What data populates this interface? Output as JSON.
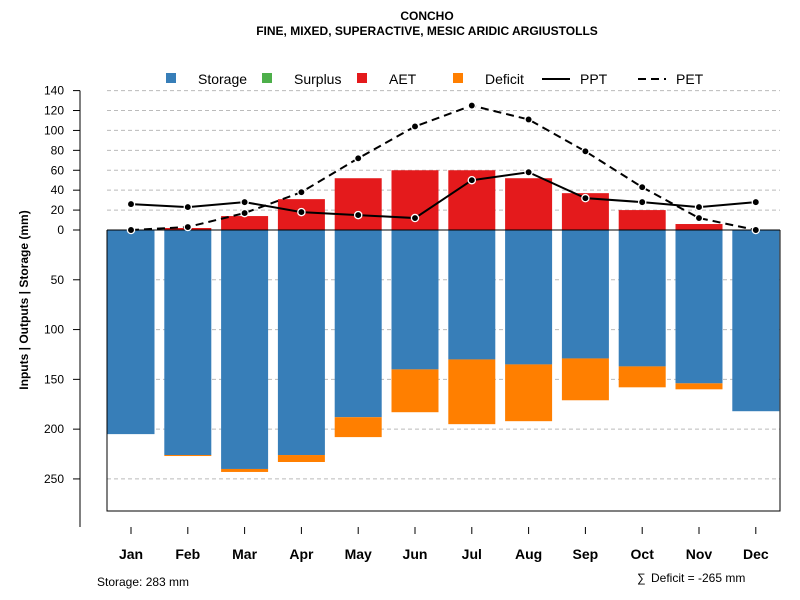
{
  "chart_data": {
    "type": "bar",
    "title": "CONCHO",
    "subtitle": "FINE, MIXED, SUPERACTIVE, MESIC ARIDIC ARGIUSTOLLS",
    "ylabel": "Inputs | Outputs | Storage    (mm)",
    "categories": [
      "Jan",
      "Feb",
      "Mar",
      "Apr",
      "May",
      "Jun",
      "Jul",
      "Aug",
      "Sep",
      "Oct",
      "Nov",
      "Dec"
    ],
    "upper_ticks": [
      "0",
      "20",
      "40",
      "60",
      "80",
      "100",
      "120",
      "140"
    ],
    "lower_ticks": [
      "50",
      "100",
      "150",
      "200",
      "250"
    ],
    "ylim_upper": [
      0,
      140
    ],
    "ylim_lower": [
      0,
      283
    ],
    "colors": {
      "storage": "#377eb8",
      "surplus": "#4daf4a",
      "aet": "#e41a1c",
      "deficit": "#ff7f00",
      "line": "#000000",
      "grid": "#bbbbbb"
    },
    "legend": [
      "Storage",
      "Surplus",
      "AET",
      "Deficit",
      "PPT",
      "PET"
    ],
    "series": [
      {
        "name": "AET",
        "values": [
          0,
          2,
          14,
          31,
          52,
          60,
          60,
          52,
          37,
          20,
          6,
          0
        ]
      },
      {
        "name": "Storage",
        "values": [
          205,
          226,
          240,
          226,
          188,
          140,
          130,
          135,
          129,
          137,
          154,
          182
        ]
      },
      {
        "name": "Deficit",
        "values": [
          0,
          1,
          3,
          7,
          20,
          43,
          65,
          57,
          42,
          21,
          6,
          0
        ]
      },
      {
        "name": "Surplus",
        "values": [
          0,
          0,
          0,
          0,
          0,
          0,
          0,
          0,
          0,
          0,
          0,
          0
        ]
      },
      {
        "name": "PPT",
        "values": [
          26,
          23,
          28,
          18,
          15,
          12,
          50,
          58,
          32,
          28,
          23,
          28
        ]
      },
      {
        "name": "PET",
        "values": [
          0,
          3,
          17,
          38,
          72,
          104,
          125,
          111,
          79,
          43,
          12,
          0
        ]
      }
    ],
    "storage_note": "Storage: 283 mm",
    "deficit_note": "Deficit = -265 mm",
    "sum_symbol": "∑"
  }
}
